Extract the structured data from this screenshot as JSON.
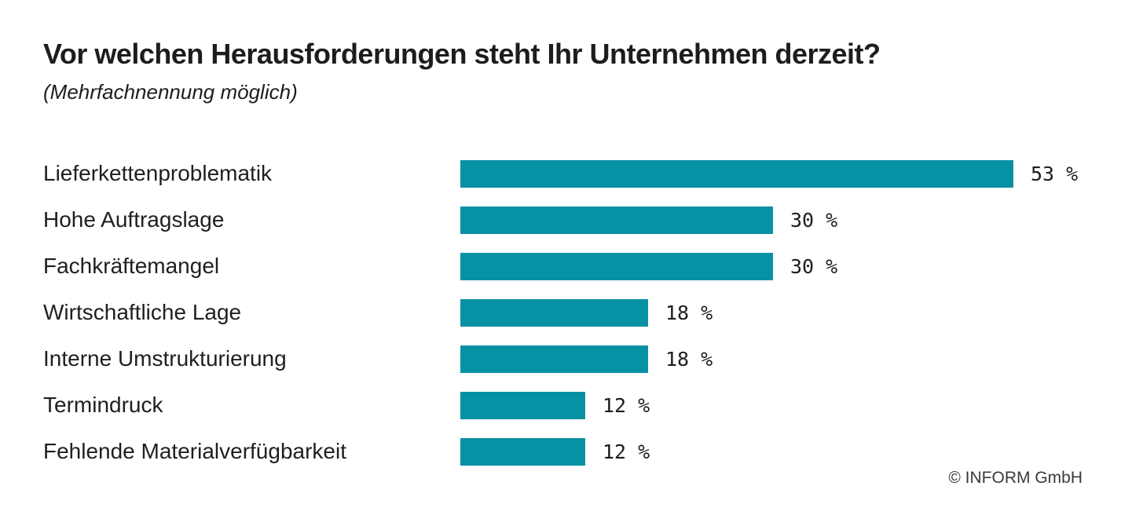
{
  "header": {
    "title": "Vor welchen Herausforderungen steht Ihr Unternehmen derzeit?",
    "subtitle": "(Mehrfachnennung möglich)"
  },
  "footer": {
    "credit": "© INFORM GmbH"
  },
  "colors": {
    "bar": "#0791a4",
    "text": "#1d1d1b"
  },
  "chart_data": {
    "type": "bar",
    "orientation": "horizontal",
    "title": "Vor welchen Herausforderungen steht Ihr Unternehmen derzeit?",
    "subtitle": "(Mehrfachnennung möglich)",
    "categories": [
      "Lieferkettenproblematik",
      "Hohe Auftragslage",
      "Fachkräftemangel",
      "Wirtschaftliche Lage",
      "Interne Umstrukturierung",
      "Termindruck",
      "Fehlende Materialverfügbarkeit"
    ],
    "values": [
      53,
      30,
      30,
      18,
      18,
      12,
      12
    ],
    "value_labels": [
      "53 %",
      "30 %",
      "30 %",
      "18 %",
      "18 %",
      "12 %",
      "12 %"
    ],
    "unit": "%",
    "bar_color": "#0791a4",
    "xlim": [
      0,
      53
    ],
    "grid": false,
    "legend": false,
    "data_labels_position": "right-of-bar"
  }
}
